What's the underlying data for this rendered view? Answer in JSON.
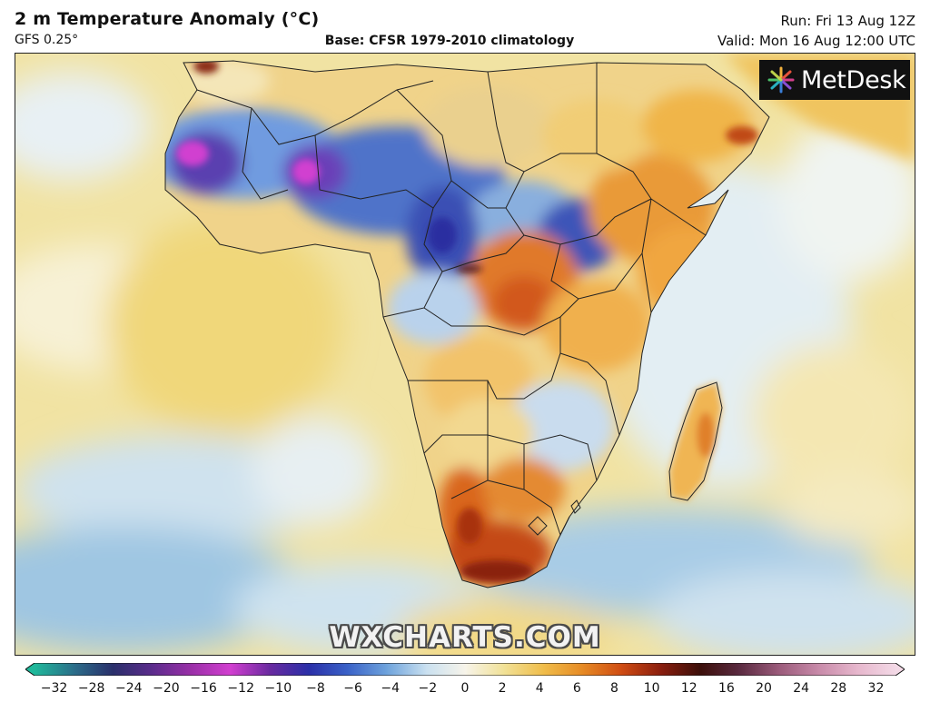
{
  "header": {
    "title": "2 m Temperature Anomaly (°C)",
    "model": "GFS 0.25°",
    "base": "Base: CFSR 1979-2010 climatology",
    "run": "Run: Fri 13 Aug 12Z",
    "valid": "Valid: Mon 16 Aug 12:00 UTC"
  },
  "logo": {
    "text": "MetDesk"
  },
  "watermark": {
    "text": "WXCHARTS.COM"
  },
  "colorbar": {
    "labels": [
      "−32",
      "−28",
      "−24",
      "−20",
      "−16",
      "−12",
      "−10",
      "−8",
      "−6",
      "−4",
      "−2",
      "0",
      "2",
      "4",
      "6",
      "8",
      "10",
      "12",
      "16",
      "20",
      "24",
      "28",
      "32"
    ],
    "colors": [
      "#1fb89a",
      "#2b6e8a",
      "#2a2f6b",
      "#5b2c8c",
      "#9a2fa8",
      "#d23fd0",
      "#6a2aa0",
      "#2a2fa8",
      "#3a62c8",
      "#6ea3dc",
      "#c9e0f0",
      "#f7f4ea",
      "#f1e196",
      "#f0bd4a",
      "#e68a24",
      "#cf4b12",
      "#8a1e0e",
      "#3c0f0a",
      "#5a2a40",
      "#9a5a7a",
      "#c789a8",
      "#e6b6cc",
      "#f3d9e6"
    ]
  }
}
